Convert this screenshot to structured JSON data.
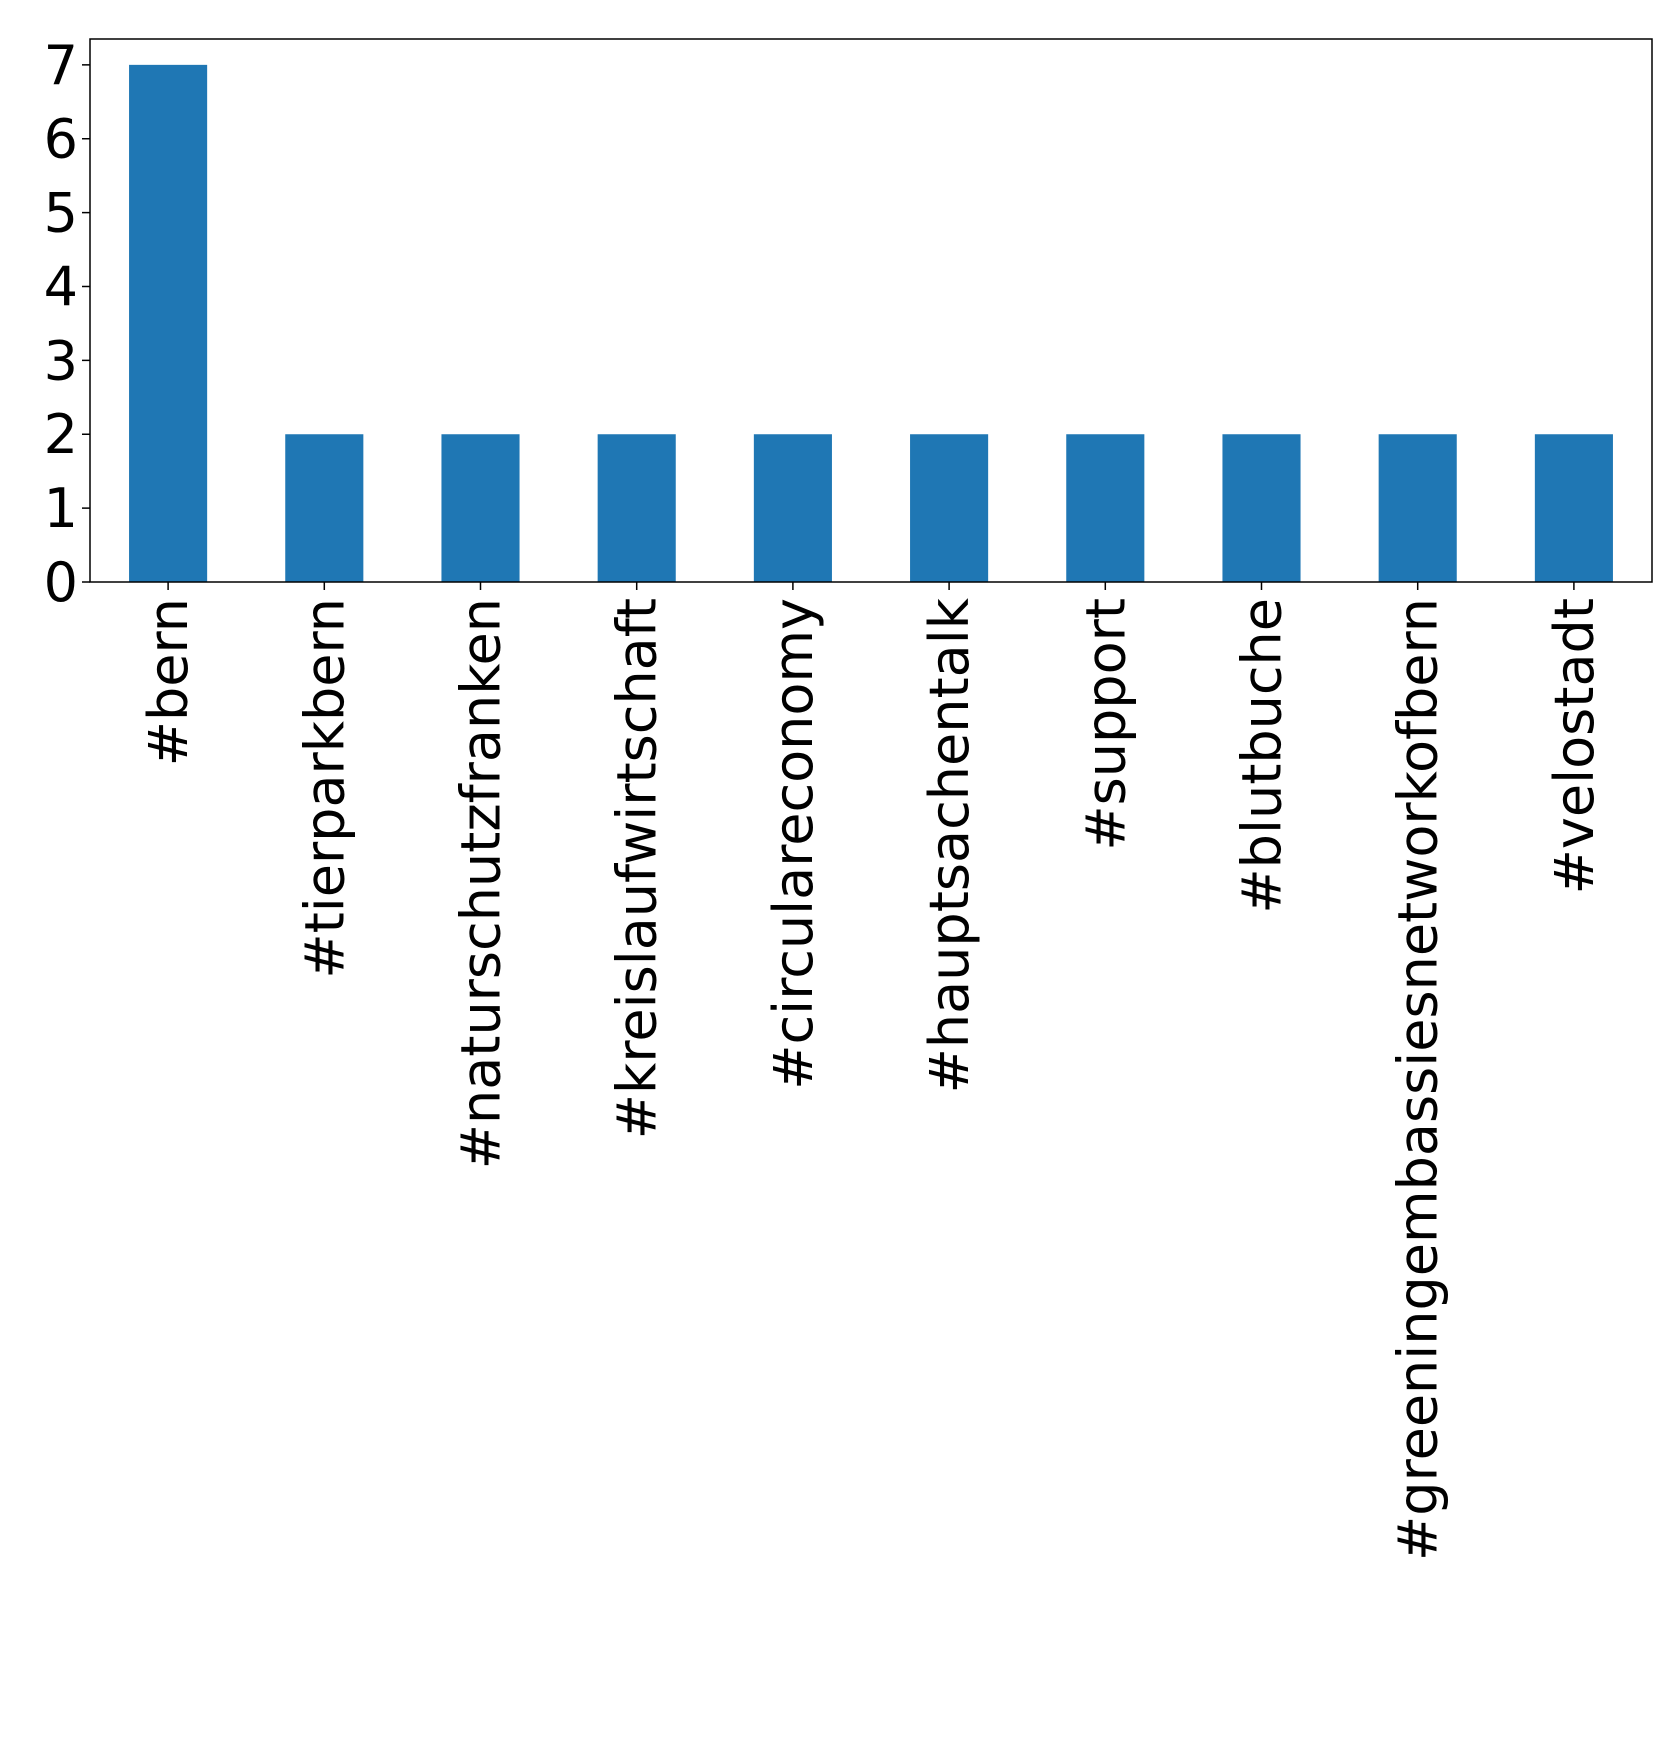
{
  "chart_data": {
    "type": "bar",
    "categories": [
      "#bern",
      "#tierparkbern",
      "#naturschutzfranken",
      "#kreislaufwirtschaft",
      "#circulareconomy",
      "#hauptsachentalk",
      "#support",
      "#blutbuche",
      "#greeningembassiesnetworkofbern",
      "#velostadt"
    ],
    "values": [
      7,
      2,
      2,
      2,
      2,
      2,
      2,
      2,
      2,
      2
    ],
    "color": "#1f77b4",
    "ylim": [
      0,
      7.35
    ],
    "yticks": [
      0,
      1,
      2,
      3,
      4,
      5,
      6,
      7
    ],
    "grid": false
  }
}
